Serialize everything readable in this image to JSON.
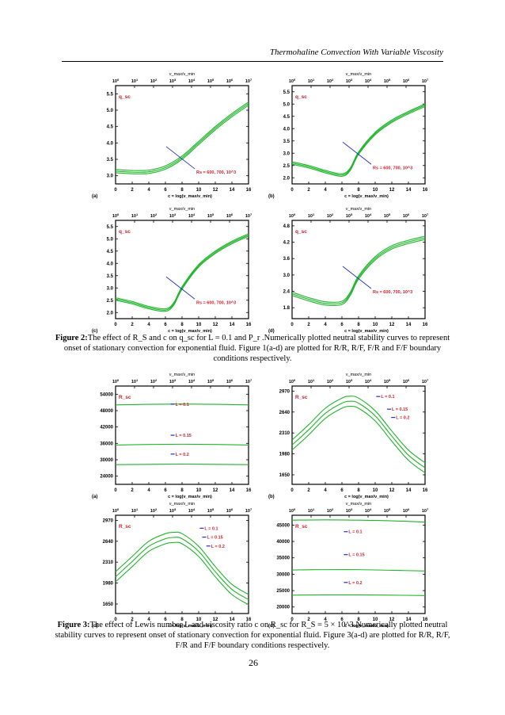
{
  "header": {
    "running_title": "Thermohaline Convection With Variable Viscosity"
  },
  "page_number": "26",
  "figure2_caption": {
    "label": "Figure 2:",
    "text": "The effect of R_S and c on q_sc for L = 0.1 and P_r .Numerically plotted neutral stability curves to represent onset of stationary convection for exponential fluid.  Figure 1(a-d) are plotted for R/R,  R/F, F/R and F/F boundary conditions respectively."
  },
  "figure3_caption": {
    "label": "Figure 3:",
    "text": "The effect of Lewis number L and viscosity ratio c on R_sc  for R_S = 5 × 10^3.Numerically plotted neutral stability curves to represent onset of stationary convection for exponential fluid.  Figure 3(a-d) are plotted for R/R,  R/F, F/R and F/F boundary conditions respectively."
  },
  "chart_data": [
    {
      "type": "line",
      "panel": "(a)",
      "xlabel": "c = log(ν_max/ν_min)",
      "top_axis_label": "ν_max/ν_min",
      "ylabel": "q_sc",
      "xlim": [
        0,
        16
      ],
      "ylim": [
        2.75,
        5.75
      ],
      "x_ticks": [
        "0",
        "2",
        "4",
        "6",
        "8",
        "10",
        "12",
        "14",
        "16"
      ],
      "top_ticks": [
        "10^0",
        "10^1",
        "10^2",
        "10^3",
        "10^4",
        "10^5",
        "10^6",
        "10^7"
      ],
      "y_ticks": [
        "3.0",
        "3.5",
        "4.0",
        "4.5",
        "5.0",
        "5.5"
      ],
      "annotation": "Rs = 600, 700, 10^3",
      "series": [
        {
          "x": [
            0,
            2,
            4,
            6,
            8,
            10,
            12,
            14,
            16
          ],
          "values": [
            3.09,
            3.06,
            3.07,
            3.2,
            3.5,
            3.95,
            4.4,
            4.8,
            5.15
          ]
        },
        {
          "x": [
            0,
            2,
            4,
            6,
            8,
            10,
            12,
            14,
            16
          ],
          "values": [
            3.14,
            3.11,
            3.12,
            3.25,
            3.55,
            4.0,
            4.45,
            4.85,
            5.2
          ]
        },
        {
          "x": [
            0,
            2,
            4,
            6,
            8,
            10,
            12,
            14,
            16
          ],
          "values": [
            3.19,
            3.16,
            3.17,
            3.3,
            3.6,
            4.05,
            4.5,
            4.9,
            5.25
          ]
        }
      ]
    },
    {
      "type": "line",
      "panel": "(b)",
      "xlabel": "c = log(ν_max/ν_min)",
      "top_axis_label": "ν_max/ν_min",
      "ylabel": "q_sc",
      "xlim": [
        0,
        16
      ],
      "ylim": [
        1.75,
        5.75
      ],
      "x_ticks": [
        "0",
        "2",
        "4",
        "6",
        "8",
        "10",
        "12",
        "14",
        "16"
      ],
      "top_ticks": [
        "10^0",
        "10^1",
        "10^2",
        "10^3",
        "10^4",
        "10^5",
        "10^6",
        "10^7"
      ],
      "y_ticks": [
        "2.0",
        "2.5",
        "3.0",
        "3.5",
        "4.0",
        "4.5",
        "5.0",
        "5.5"
      ],
      "annotation": "Rs = 600, 700, 10^3",
      "series": [
        {
          "x": [
            0,
            2,
            4,
            6,
            7,
            8,
            10,
            12,
            14,
            16
          ],
          "values": [
            2.55,
            2.4,
            2.2,
            2.06,
            2.3,
            2.95,
            3.75,
            4.25,
            4.6,
            4.9
          ]
        },
        {
          "x": [
            0,
            2,
            4,
            6,
            7,
            8,
            10,
            12,
            14,
            16
          ],
          "values": [
            2.6,
            2.45,
            2.25,
            2.11,
            2.35,
            3.0,
            3.8,
            4.3,
            4.65,
            4.95
          ]
        },
        {
          "x": [
            0,
            2,
            4,
            6,
            7,
            8,
            10,
            12,
            14,
            16
          ],
          "values": [
            2.65,
            2.5,
            2.3,
            2.16,
            2.4,
            3.05,
            3.85,
            4.35,
            4.7,
            5.0
          ]
        }
      ]
    },
    {
      "type": "line",
      "panel": "(c)",
      "xlabel": "c = log(ν_max/ν_min)",
      "top_axis_label": "ν_max/ν_min",
      "ylabel": "q_sc",
      "xlim": [
        0,
        16
      ],
      "ylim": [
        1.75,
        5.75
      ],
      "x_ticks": [
        "0",
        "2",
        "4",
        "6",
        "8",
        "10",
        "12",
        "14",
        "16"
      ],
      "top_ticks": [
        "10^0",
        "10^1",
        "10^2",
        "10^3",
        "10^4",
        "10^5",
        "10^6",
        "10^7"
      ],
      "y_ticks": [
        "2.0",
        "2.5",
        "3.0",
        "3.5",
        "4.0",
        "4.5",
        "5.0",
        "5.5"
      ],
      "annotation": "Rs = 600, 700, 10^3",
      "series": [
        {
          "x": [
            0,
            2,
            4,
            6,
            7,
            8,
            10,
            12,
            14,
            16
          ],
          "values": [
            2.5,
            2.35,
            2.15,
            2.05,
            2.3,
            2.95,
            3.85,
            4.4,
            4.8,
            5.1
          ]
        },
        {
          "x": [
            0,
            2,
            4,
            6,
            7,
            8,
            10,
            12,
            14,
            16
          ],
          "values": [
            2.55,
            2.4,
            2.2,
            2.1,
            2.35,
            3.0,
            3.9,
            4.45,
            4.85,
            5.15
          ]
        },
        {
          "x": [
            0,
            2,
            4,
            6,
            7,
            8,
            10,
            12,
            14,
            16
          ],
          "values": [
            2.6,
            2.45,
            2.25,
            2.15,
            2.4,
            3.05,
            3.95,
            4.5,
            4.9,
            5.2
          ]
        }
      ]
    },
    {
      "type": "line",
      "panel": "(d)",
      "xlabel": "c = log(ν_max/ν_min)",
      "top_axis_label": "ν_max/ν_min",
      "ylabel": "q_sc",
      "xlim": [
        0,
        16
      ],
      "ylim": [
        1.4,
        5.0
      ],
      "x_ticks": [
        "0",
        "2",
        "4",
        "6",
        "8",
        "10",
        "12",
        "14",
        "16"
      ],
      "top_ticks": [
        "10^0",
        "10^1",
        "10^2",
        "10^3",
        "10^4",
        "10^5",
        "10^6",
        "10^7"
      ],
      "y_ticks": [
        "1.8",
        "2.4",
        "3.0",
        "3.6",
        "4.2",
        "4.8"
      ],
      "annotation": "Rs = 600, 700, 10^3",
      "series": [
        {
          "x": [
            0,
            2,
            4,
            6,
            7,
            8,
            10,
            12,
            14,
            16
          ],
          "values": [
            2.25,
            2.05,
            1.9,
            1.92,
            2.25,
            2.85,
            3.55,
            3.95,
            4.15,
            4.3
          ]
        },
        {
          "x": [
            0,
            2,
            4,
            6,
            7,
            8,
            10,
            12,
            14,
            16
          ],
          "values": [
            2.31,
            2.11,
            1.96,
            1.98,
            2.31,
            2.91,
            3.61,
            4.01,
            4.21,
            4.36
          ]
        },
        {
          "x": [
            0,
            2,
            4,
            6,
            7,
            8,
            10,
            12,
            14,
            16
          ],
          "values": [
            2.37,
            2.17,
            2.02,
            2.04,
            2.37,
            2.97,
            3.67,
            4.07,
            4.27,
            4.42
          ]
        }
      ]
    },
    {
      "type": "line",
      "panel": "(a)",
      "xlabel": "c = log(ν_max/ν_min)",
      "top_axis_label": "ν_max/ν_min",
      "ylabel": "R_sc",
      "xlim": [
        0,
        16
      ],
      "ylim": [
        21000,
        57000
      ],
      "x_ticks": [
        "0",
        "2",
        "4",
        "6",
        "8",
        "10",
        "12",
        "14",
        "16"
      ],
      "top_ticks": [
        "10^0",
        "10^1",
        "10^2",
        "10^3",
        "10^4",
        "10^5",
        "10^6",
        "10^7"
      ],
      "y_ticks": [
        "24000",
        "30000",
        "36000",
        "42000",
        "48000",
        "54000"
      ],
      "labels": [
        {
          "text": "L = 0.1",
          "x": 7.2,
          "y": 49800
        },
        {
          "text": "L = 0.15",
          "x": 7.2,
          "y": 38400
        },
        {
          "text": "L = 0.2",
          "x": 7.2,
          "y": 31500
        }
      ],
      "series": [
        {
          "x": [
            0,
            4,
            8,
            12,
            16
          ],
          "values": [
            50100,
            50300,
            50400,
            50300,
            50100
          ]
        },
        {
          "x": [
            0,
            4,
            8,
            12,
            16
          ],
          "values": [
            35400,
            35600,
            35700,
            35600,
            35400
          ]
        },
        {
          "x": [
            0,
            4,
            8,
            12,
            16
          ],
          "values": [
            28200,
            28300,
            28400,
            28300,
            28200
          ]
        }
      ]
    },
    {
      "type": "line",
      "panel": "(b)",
      "xlabel": "c = log(ν_max/ν_min)",
      "top_axis_label": "ν_max/ν_min",
      "ylabel": "R_sc",
      "xlim": [
        0,
        16
      ],
      "ylim": [
        1500,
        3050
      ],
      "x_ticks": [
        "0",
        "2",
        "4",
        "6",
        "8",
        "10",
        "12",
        "14",
        "16"
      ],
      "top_ticks": [
        "10^0",
        "10^1",
        "10^2",
        "10^3",
        "10^4",
        "10^5",
        "10^6",
        "10^7"
      ],
      "y_ticks": [
        "1650",
        "1980",
        "2310",
        "2640",
        "2970"
      ],
      "labels": [
        {
          "text": "L = 0.1",
          "x": 10.7,
          "y": 2860
        },
        {
          "text": "L = 0.15",
          "x": 12.0,
          "y": 2660
        },
        {
          "text": "L = 0.2",
          "x": 12.5,
          "y": 2530
        }
      ],
      "series": [
        {
          "x": [
            0,
            2,
            4,
            6,
            7,
            8,
            10,
            12,
            14,
            16
          ],
          "values": [
            2200,
            2440,
            2700,
            2860,
            2890,
            2860,
            2660,
            2340,
            2040,
            1840
          ]
        },
        {
          "x": [
            0,
            2,
            4,
            6,
            7,
            8,
            10,
            12,
            14,
            16
          ],
          "values": [
            2120,
            2360,
            2620,
            2780,
            2810,
            2780,
            2580,
            2260,
            1960,
            1760
          ]
        },
        {
          "x": [
            0,
            2,
            4,
            6,
            7,
            8,
            10,
            12,
            14,
            16
          ],
          "values": [
            2040,
            2280,
            2540,
            2700,
            2730,
            2700,
            2500,
            2180,
            1880,
            1680
          ]
        }
      ]
    },
    {
      "type": "line",
      "panel": "(c)",
      "xlabel": "c = log(ν_max/ν_min)",
      "top_axis_label": "ν_max/ν_min",
      "ylabel": "R_sc",
      "xlim": [
        0,
        16
      ],
      "ylim": [
        1500,
        3050
      ],
      "x_ticks": [
        "0",
        "2",
        "4",
        "6",
        "8",
        "10",
        "12",
        "14",
        "16"
      ],
      "top_ticks": [
        "10^0",
        "10^1",
        "10^2",
        "10^3",
        "10^4",
        "10^5",
        "10^6",
        "10^7"
      ],
      "y_ticks": [
        "1650",
        "1980",
        "2310",
        "2640",
        "2970"
      ],
      "labels": [
        {
          "text": "L = 0.1",
          "x": 10.7,
          "y": 2820
        },
        {
          "text": "L = 0.15",
          "x": 11.0,
          "y": 2680
        },
        {
          "text": "L = 0.2",
          "x": 11.5,
          "y": 2540
        }
      ],
      "series": [
        {
          "x": [
            0,
            2,
            4,
            6,
            7,
            8,
            10,
            12,
            14,
            16
          ],
          "values": [
            2160,
            2400,
            2640,
            2760,
            2780,
            2760,
            2560,
            2240,
            1960,
            1800
          ]
        },
        {
          "x": [
            0,
            2,
            4,
            6,
            7,
            8,
            10,
            12,
            14,
            16
          ],
          "values": [
            2080,
            2320,
            2560,
            2680,
            2700,
            2680,
            2480,
            2160,
            1880,
            1720
          ]
        },
        {
          "x": [
            0,
            2,
            4,
            6,
            7,
            8,
            10,
            12,
            14,
            16
          ],
          "values": [
            2000,
            2240,
            2480,
            2600,
            2620,
            2600,
            2400,
            2080,
            1800,
            1640
          ]
        }
      ]
    },
    {
      "type": "line",
      "panel": "(d)",
      "xlabel": "c = log(ν_max/ν_min)",
      "top_axis_label": "ν_max/ν_min",
      "ylabel": "R_sc",
      "xlim": [
        0,
        16
      ],
      "ylim": [
        18000,
        48000
      ],
      "x_ticks": [
        "0",
        "2",
        "4",
        "6",
        "8",
        "10",
        "12",
        "14",
        "16"
      ],
      "top_ticks": [
        "10^0",
        "10^1",
        "10^2",
        "10^3",
        "10^4",
        "10^5",
        "10^6",
        "10^7"
      ],
      "y_ticks": [
        "20000",
        "25000",
        "30000",
        "35000",
        "40000",
        "45000"
      ],
      "labels": [
        {
          "text": "L = 0.1",
          "x": 6.8,
          "y": 42500
        },
        {
          "text": "L = 0.15",
          "x": 6.8,
          "y": 35500
        },
        {
          "text": "L = 0.2",
          "x": 6.8,
          "y": 27000
        }
      ],
      "series": [
        {
          "x": [
            0,
            4,
            8,
            12,
            16
          ],
          "values": [
            46500,
            46600,
            46500,
            46300,
            45900
          ]
        },
        {
          "x": [
            0,
            4,
            8,
            12,
            16
          ],
          "values": [
            31300,
            31400,
            31400,
            31200,
            31000
          ]
        },
        {
          "x": [
            0,
            4,
            8,
            12,
            16
          ],
          "values": [
            23600,
            23700,
            23700,
            23600,
            23500
          ]
        }
      ]
    }
  ]
}
